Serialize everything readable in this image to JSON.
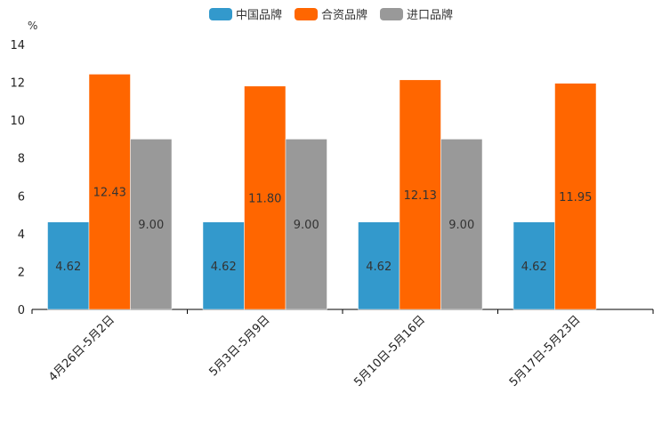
{
  "chart_data": {
    "type": "bar",
    "unit_label": "%",
    "categories": [
      "4月26日-5月2日",
      "5月3日-5月9日",
      "5月10日-5月16日",
      "5月17日-5月23日"
    ],
    "series": [
      {
        "name": "中国品牌",
        "color": "#3399cc",
        "values": [
          4.62,
          4.62,
          4.62,
          4.62
        ],
        "labels": [
          "4.62",
          "4.62",
          "4.62",
          "4.62"
        ]
      },
      {
        "name": "合资品牌",
        "color": "#ff6600",
        "values": [
          12.43,
          11.8,
          12.13,
          11.95
        ],
        "labels": [
          "12.43",
          "11.80",
          "12.13",
          "11.95"
        ]
      },
      {
        "name": "进口品牌",
        "color": "#999999",
        "values": [
          9.0,
          9.0,
          9.0,
          null
        ],
        "labels": [
          "9.00",
          "9.00",
          "9.00",
          ""
        ]
      }
    ],
    "ylim": [
      0,
      14
    ],
    "yticks": [
      "0",
      "2",
      "4",
      "6",
      "8",
      "10",
      "12",
      "14"
    ],
    "legend_position": "top-center",
    "grid": false
  }
}
